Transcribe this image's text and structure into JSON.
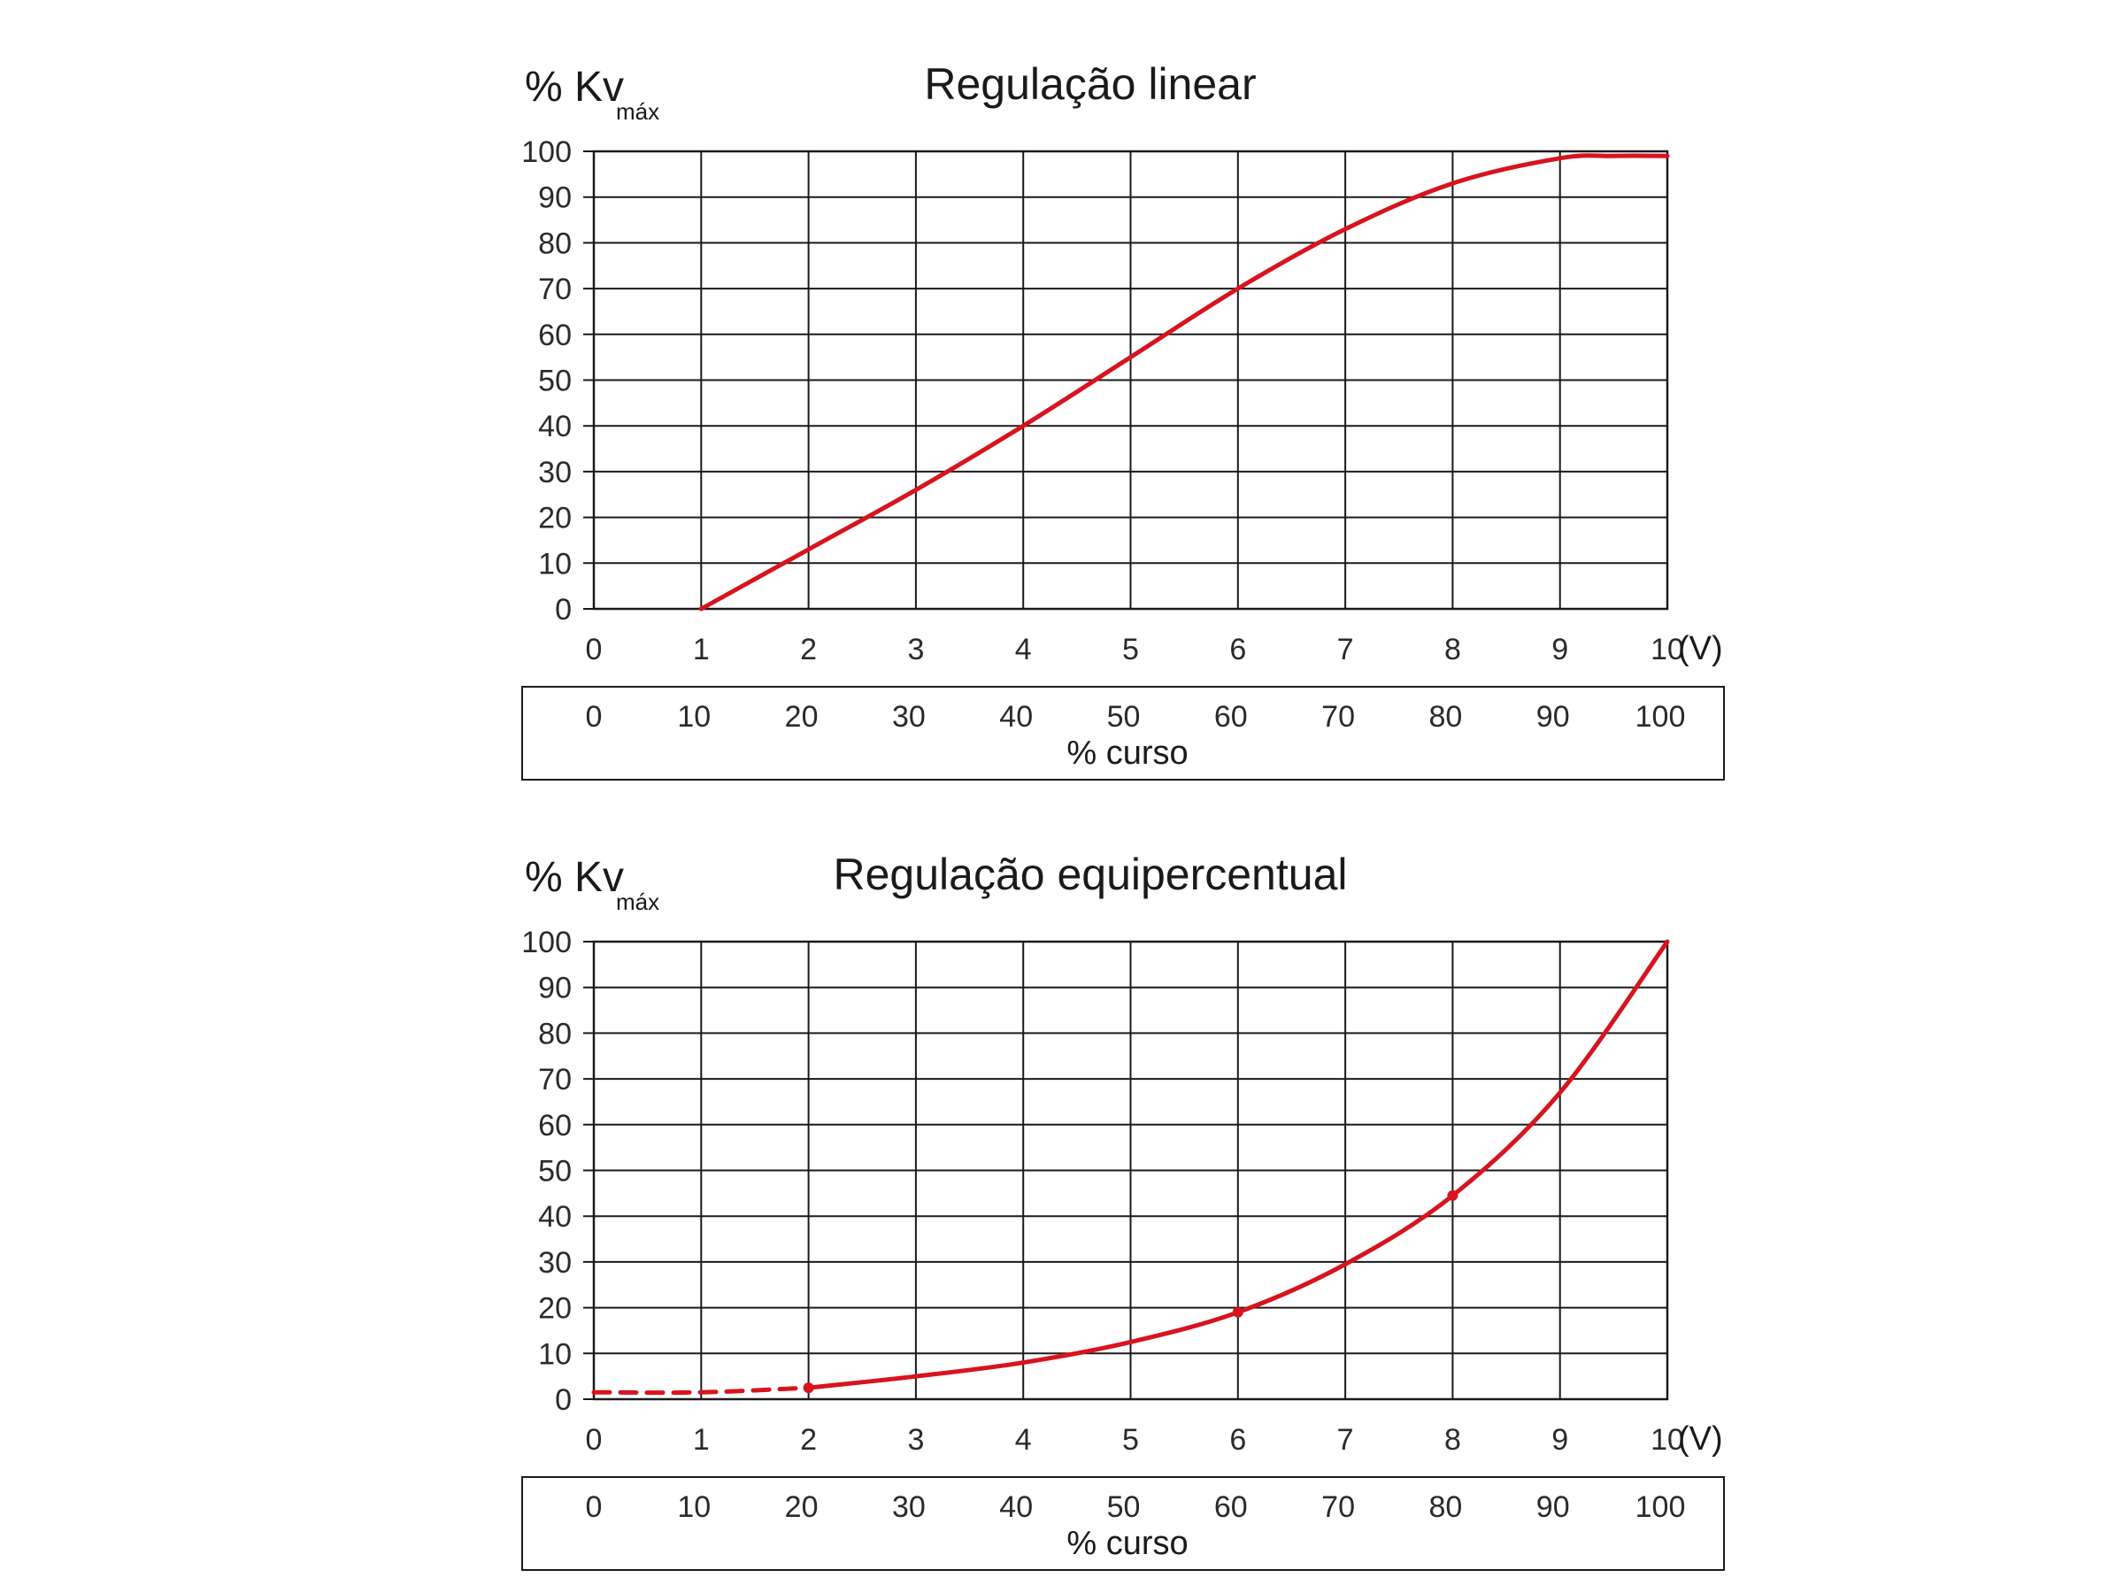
{
  "colors": {
    "curve": "#d7141e",
    "grid": "#1a1a1a"
  },
  "chart_data": [
    {
      "type": "line",
      "title": "Regulação linear",
      "ylabel_main": "% Kv",
      "ylabel_sub": "máx",
      "unit_label": "(V)",
      "secondary_xlabel": "% curso",
      "x_ticks": [
        "0",
        "1",
        "2",
        "3",
        "4",
        "5",
        "6",
        "7",
        "8",
        "9",
        "10"
      ],
      "x_pct_ticks": [
        "0",
        "10",
        "20",
        "30",
        "40",
        "50",
        "60",
        "70",
        "80",
        "90",
        "100"
      ],
      "y_ticks": [
        "0",
        "10",
        "20",
        "30",
        "40",
        "50",
        "60",
        "70",
        "80",
        "90",
        "100"
      ],
      "xlim": [
        0,
        10
      ],
      "ylim": [
        0,
        100
      ],
      "grid": true,
      "series": [
        {
          "x": [
            1,
            2,
            3,
            4,
            5,
            6,
            7,
            8,
            9,
            9.5,
            10
          ],
          "y": [
            0,
            13,
            26,
            40,
            55,
            70,
            83,
            93,
            98.5,
            99,
            99
          ],
          "dashed_until_x": null,
          "markers_x": []
        }
      ]
    },
    {
      "type": "line",
      "title": "Regulação equipercentual",
      "ylabel_main": "% Kv",
      "ylabel_sub": "máx",
      "unit_label": "(V)",
      "secondary_xlabel": "% curso",
      "x_ticks": [
        "0",
        "1",
        "2",
        "3",
        "4",
        "5",
        "6",
        "7",
        "8",
        "9",
        "10"
      ],
      "x_pct_ticks": [
        "0",
        "10",
        "20",
        "30",
        "40",
        "50",
        "60",
        "70",
        "80",
        "90",
        "100"
      ],
      "y_ticks": [
        "0",
        "10",
        "20",
        "30",
        "40",
        "50",
        "60",
        "70",
        "80",
        "90",
        "100"
      ],
      "xlim": [
        0,
        10
      ],
      "ylim": [
        0,
        100
      ],
      "grid": true,
      "series": [
        {
          "x": [
            0,
            1,
            2,
            3,
            4,
            5,
            6,
            7,
            8,
            9,
            10
          ],
          "y": [
            1.5,
            1.5,
            2.5,
            5,
            8,
            12.5,
            19,
            29.5,
            44.5,
            67,
            100
          ],
          "dashed_until_x": 2,
          "markers_x": [
            2,
            6,
            8
          ]
        }
      ]
    }
  ]
}
